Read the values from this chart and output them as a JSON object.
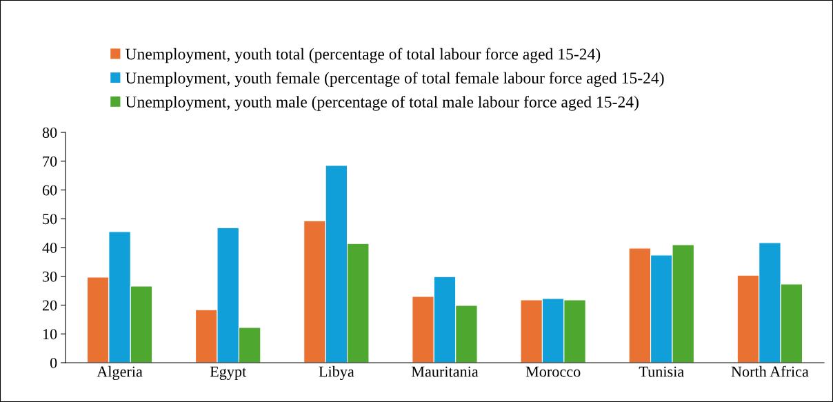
{
  "chart_data": {
    "type": "bar",
    "categories": [
      "Algeria",
      "Egypt",
      "Libya",
      "Mauritania",
      "Morocco",
      "Tunisia",
      "North Africa"
    ],
    "series": [
      {
        "name": "Unemployment, youth total (percentage of total labour force aged 15-24)",
        "color": "#e97132",
        "values": [
          29.7,
          18.4,
          49.3,
          23.0,
          21.8,
          39.8,
          30.4
        ]
      },
      {
        "name": "Unemployment, youth female (percentage of total female labour force aged 15-24)",
        "color": "#109fd8",
        "values": [
          45.5,
          46.9,
          68.5,
          29.9,
          22.3,
          37.4,
          41.7
        ]
      },
      {
        "name": "Unemployment, youth male (percentage of total male labour force aged 15-24)",
        "color": "#4ea72e",
        "values": [
          26.6,
          12.2,
          41.4,
          19.9,
          21.8,
          41.0,
          27.3
        ]
      }
    ],
    "ylim": [
      0,
      80
    ],
    "yticks": [
      0,
      10,
      20,
      30,
      40,
      50,
      60,
      70,
      80
    ],
    "grid": false,
    "legend": "top"
  }
}
